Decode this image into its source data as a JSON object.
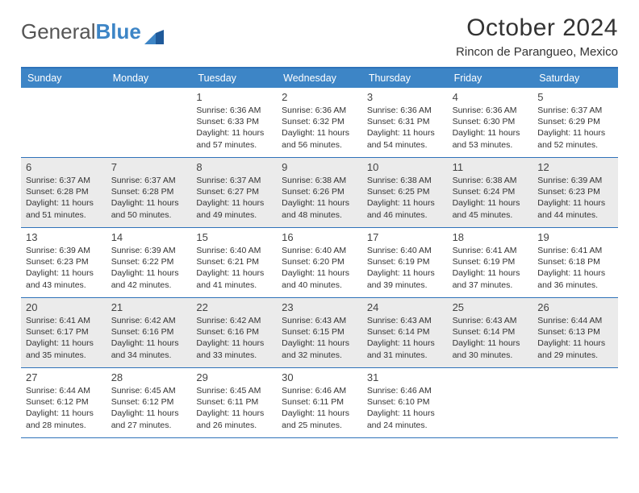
{
  "brand": {
    "part1": "General",
    "part2": "Blue"
  },
  "title": "October 2024",
  "location": "Rincon de Parangueo, Mexico",
  "dayNames": [
    "Sunday",
    "Monday",
    "Tuesday",
    "Wednesday",
    "Thursday",
    "Friday",
    "Saturday"
  ],
  "colors": {
    "headerBar": "#3d85c6",
    "border": "#2f72b9",
    "altRow": "#ebebeb",
    "text": "#333333",
    "logoGray": "#555555"
  },
  "typography": {
    "titleSize": 30,
    "locationSize": 15,
    "dayHeaderSize": 12.5,
    "dayNumSize": 13,
    "infoSize": 10.5
  },
  "layout": {
    "columns": 7,
    "rows": 5,
    "leadingBlanks": 2
  },
  "days": [
    {
      "n": 1,
      "sunrise": "6:36 AM",
      "sunset": "6:33 PM",
      "daylight": "11 hours and 57 minutes."
    },
    {
      "n": 2,
      "sunrise": "6:36 AM",
      "sunset": "6:32 PM",
      "daylight": "11 hours and 56 minutes."
    },
    {
      "n": 3,
      "sunrise": "6:36 AM",
      "sunset": "6:31 PM",
      "daylight": "11 hours and 54 minutes."
    },
    {
      "n": 4,
      "sunrise": "6:36 AM",
      "sunset": "6:30 PM",
      "daylight": "11 hours and 53 minutes."
    },
    {
      "n": 5,
      "sunrise": "6:37 AM",
      "sunset": "6:29 PM",
      "daylight": "11 hours and 52 minutes."
    },
    {
      "n": 6,
      "sunrise": "6:37 AM",
      "sunset": "6:28 PM",
      "daylight": "11 hours and 51 minutes."
    },
    {
      "n": 7,
      "sunrise": "6:37 AM",
      "sunset": "6:28 PM",
      "daylight": "11 hours and 50 minutes."
    },
    {
      "n": 8,
      "sunrise": "6:37 AM",
      "sunset": "6:27 PM",
      "daylight": "11 hours and 49 minutes."
    },
    {
      "n": 9,
      "sunrise": "6:38 AM",
      "sunset": "6:26 PM",
      "daylight": "11 hours and 48 minutes."
    },
    {
      "n": 10,
      "sunrise": "6:38 AM",
      "sunset": "6:25 PM",
      "daylight": "11 hours and 46 minutes."
    },
    {
      "n": 11,
      "sunrise": "6:38 AM",
      "sunset": "6:24 PM",
      "daylight": "11 hours and 45 minutes."
    },
    {
      "n": 12,
      "sunrise": "6:39 AM",
      "sunset": "6:23 PM",
      "daylight": "11 hours and 44 minutes."
    },
    {
      "n": 13,
      "sunrise": "6:39 AM",
      "sunset": "6:23 PM",
      "daylight": "11 hours and 43 minutes."
    },
    {
      "n": 14,
      "sunrise": "6:39 AM",
      "sunset": "6:22 PM",
      "daylight": "11 hours and 42 minutes."
    },
    {
      "n": 15,
      "sunrise": "6:40 AM",
      "sunset": "6:21 PM",
      "daylight": "11 hours and 41 minutes."
    },
    {
      "n": 16,
      "sunrise": "6:40 AM",
      "sunset": "6:20 PM",
      "daylight": "11 hours and 40 minutes."
    },
    {
      "n": 17,
      "sunrise": "6:40 AM",
      "sunset": "6:19 PM",
      "daylight": "11 hours and 39 minutes."
    },
    {
      "n": 18,
      "sunrise": "6:41 AM",
      "sunset": "6:19 PM",
      "daylight": "11 hours and 37 minutes."
    },
    {
      "n": 19,
      "sunrise": "6:41 AM",
      "sunset": "6:18 PM",
      "daylight": "11 hours and 36 minutes."
    },
    {
      "n": 20,
      "sunrise": "6:41 AM",
      "sunset": "6:17 PM",
      "daylight": "11 hours and 35 minutes."
    },
    {
      "n": 21,
      "sunrise": "6:42 AM",
      "sunset": "6:16 PM",
      "daylight": "11 hours and 34 minutes."
    },
    {
      "n": 22,
      "sunrise": "6:42 AM",
      "sunset": "6:16 PM",
      "daylight": "11 hours and 33 minutes."
    },
    {
      "n": 23,
      "sunrise": "6:43 AM",
      "sunset": "6:15 PM",
      "daylight": "11 hours and 32 minutes."
    },
    {
      "n": 24,
      "sunrise": "6:43 AM",
      "sunset": "6:14 PM",
      "daylight": "11 hours and 31 minutes."
    },
    {
      "n": 25,
      "sunrise": "6:43 AM",
      "sunset": "6:14 PM",
      "daylight": "11 hours and 30 minutes."
    },
    {
      "n": 26,
      "sunrise": "6:44 AM",
      "sunset": "6:13 PM",
      "daylight": "11 hours and 29 minutes."
    },
    {
      "n": 27,
      "sunrise": "6:44 AM",
      "sunset": "6:12 PM",
      "daylight": "11 hours and 28 minutes."
    },
    {
      "n": 28,
      "sunrise": "6:45 AM",
      "sunset": "6:12 PM",
      "daylight": "11 hours and 27 minutes."
    },
    {
      "n": 29,
      "sunrise": "6:45 AM",
      "sunset": "6:11 PM",
      "daylight": "11 hours and 26 minutes."
    },
    {
      "n": 30,
      "sunrise": "6:46 AM",
      "sunset": "6:11 PM",
      "daylight": "11 hours and 25 minutes."
    },
    {
      "n": 31,
      "sunrise": "6:46 AM",
      "sunset": "6:10 PM",
      "daylight": "11 hours and 24 minutes."
    }
  ],
  "labels": {
    "sunrise": "Sunrise:",
    "sunset": "Sunset:",
    "daylight": "Daylight:"
  }
}
